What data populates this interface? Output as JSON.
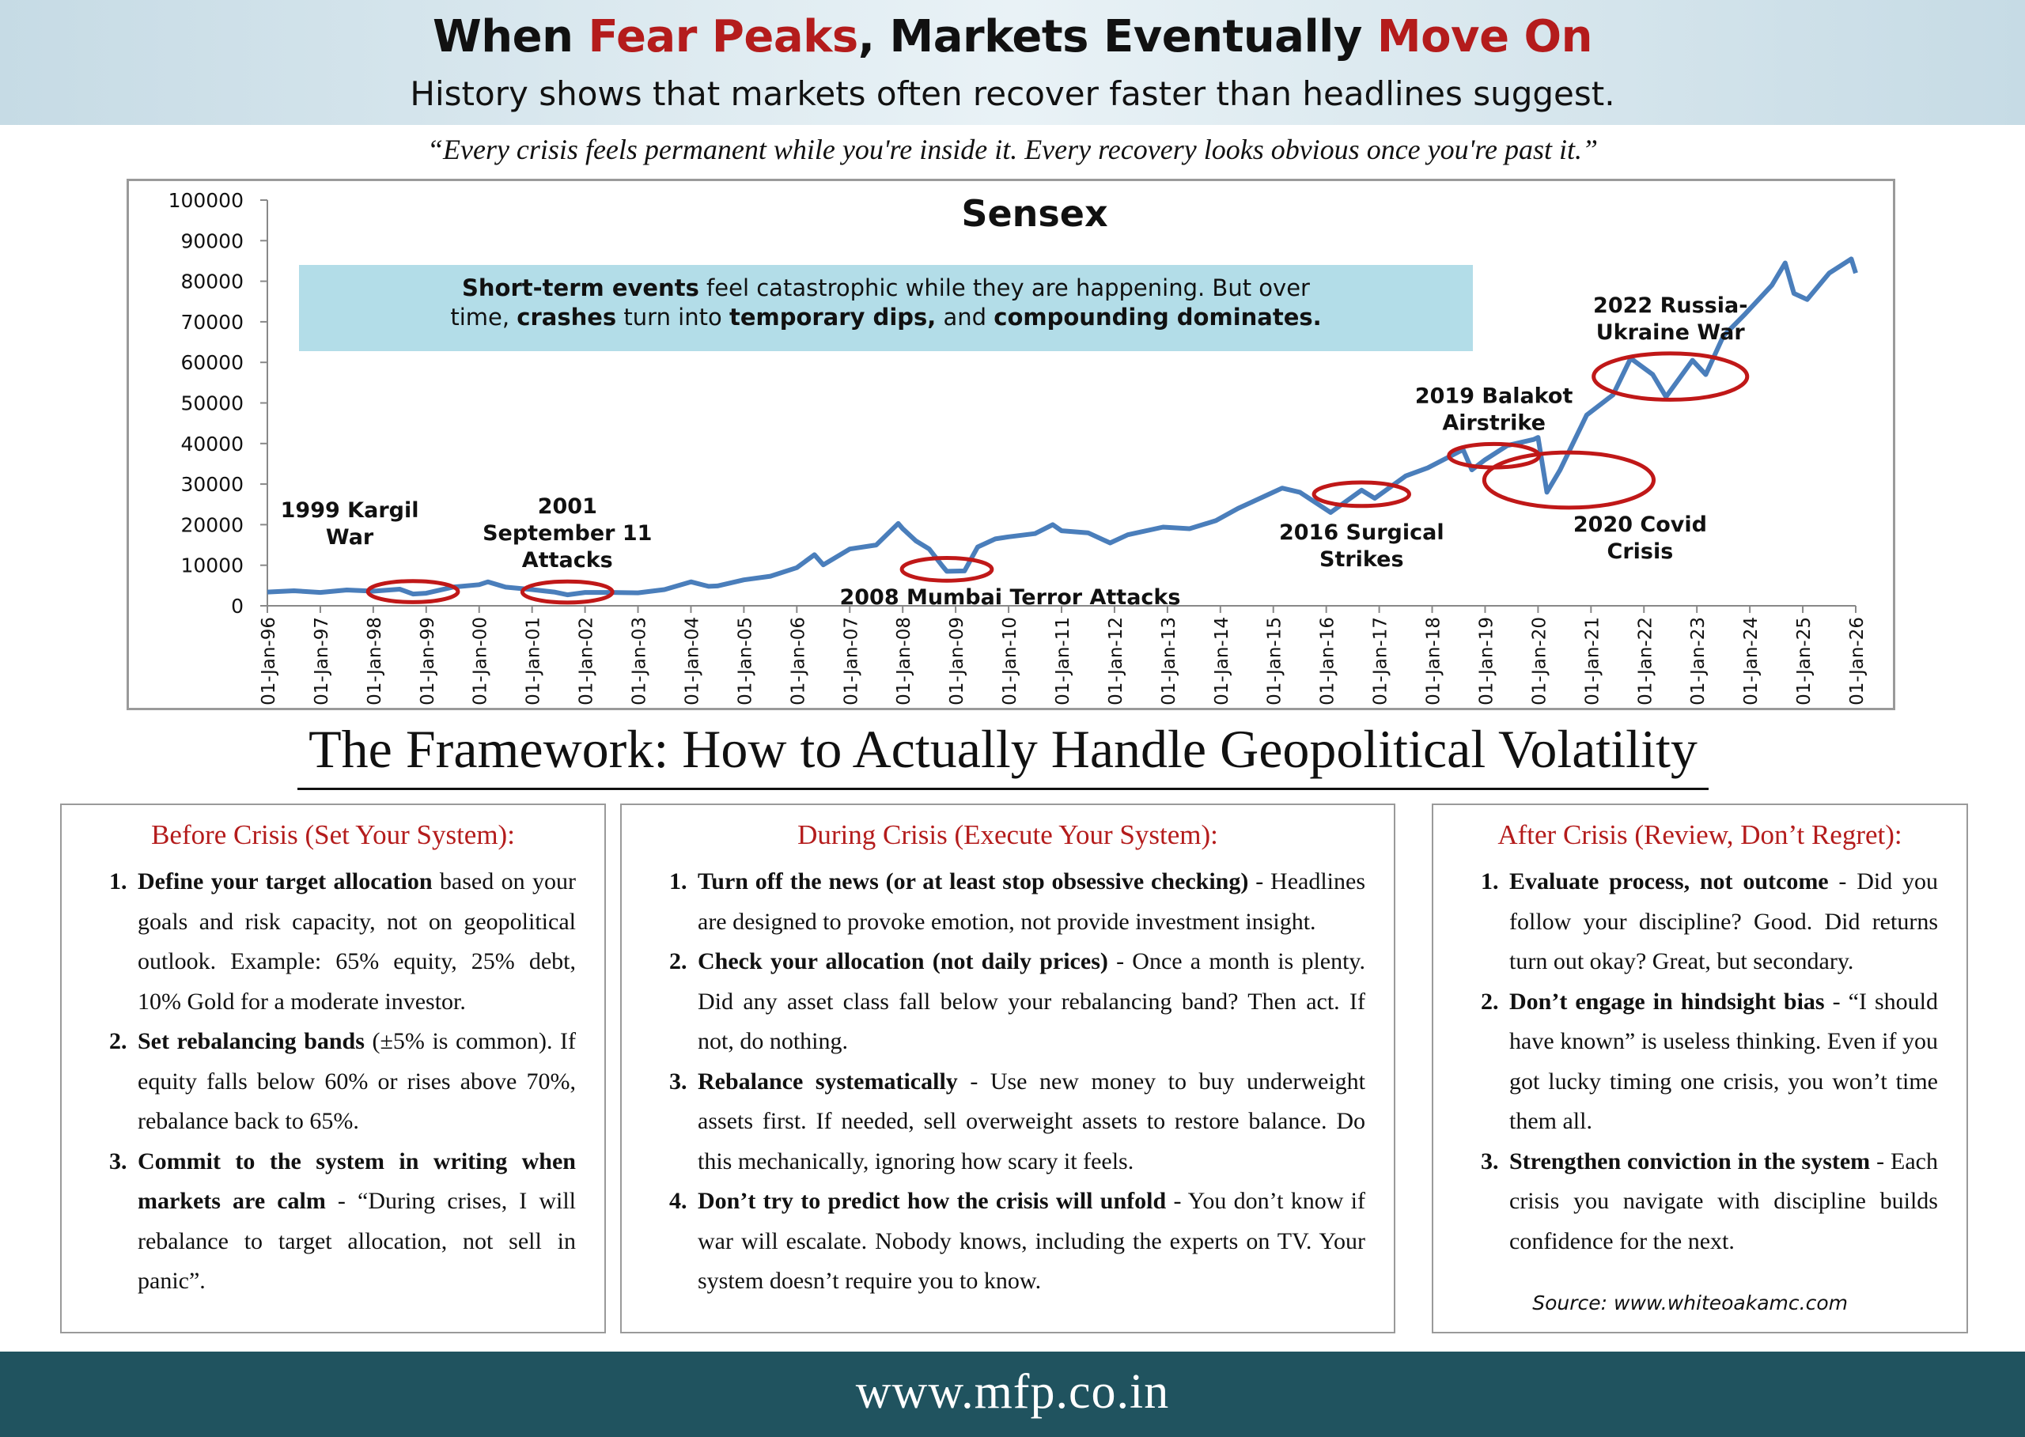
{
  "header": {
    "title_parts": [
      "When ",
      "Fear Peaks",
      ", Markets Eventually ",
      "Move On"
    ],
    "subtitle": "History shows that markets often recover faster than headlines suggest."
  },
  "quote": "“Every crisis feels permanent while you're inside it. Every recovery looks obvious once you're past it.”",
  "colors": {
    "accent_red": "#b41c1c",
    "series_blue": "#4a7ebb",
    "callout_bg": "#b3dde8",
    "footer_bg": "#20535f",
    "circle_red": "#c01818"
  },
  "chart_data": {
    "type": "line",
    "title": "Sensex",
    "series": [
      {
        "x": [
          "1996-01",
          "1996-07",
          "1997-01",
          "1997-07",
          "1998-01",
          "1998-07",
          "1998-10",
          "1999-01",
          "1999-07",
          "2000-01",
          "2000-03",
          "2000-07",
          "2001-01",
          "2001-06",
          "2001-09",
          "2002-01",
          "2002-07",
          "2003-01",
          "2003-07",
          "2004-01",
          "2004-05",
          "2004-07",
          "2005-01",
          "2005-07",
          "2006-01",
          "2006-05",
          "2006-07",
          "2007-01",
          "2007-07",
          "2007-12",
          "2008-01",
          "2008-04",
          "2008-07",
          "2008-10",
          "2008-11",
          "2009-03",
          "2009-06",
          "2009-10",
          "2010-01",
          "2010-07",
          "2010-11",
          "2011-01",
          "2011-07",
          "2011-12",
          "2012-04",
          "2012-12",
          "2013-06",
          "2013-12",
          "2014-05",
          "2014-12",
          "2015-03",
          "2015-07",
          "2016-02",
          "2016-09",
          "2016-12",
          "2017-07",
          "2017-12",
          "2018-08",
          "2018-10",
          "2019-01",
          "2019-06",
          "2019-12",
          "2020-01",
          "2020-03",
          "2020-06",
          "2020-12",
          "2021-06",
          "2021-10",
          "2022-03",
          "2022-06",
          "2022-12",
          "2023-03",
          "2023-07",
          "2023-12",
          "2024-06",
          "2024-09",
          "2024-11",
          "2025-02",
          "2025-07",
          "2025-12",
          "2026-01"
        ],
        "values": [
          3400,
          3700,
          3300,
          3900,
          3600,
          4100,
          2900,
          3100,
          4600,
          5200,
          5900,
          4600,
          4000,
          3400,
          2700,
          3300,
          3300,
          3200,
          4000,
          5900,
          4800,
          4900,
          6400,
          7300,
          9400,
          12600,
          10100,
          14000,
          15000,
          20300,
          19000,
          16000,
          14000,
          9800,
          8500,
          8600,
          14500,
          16500,
          17000,
          17800,
          20000,
          18500,
          18000,
          15500,
          17500,
          19400,
          19000,
          21000,
          24000,
          27500,
          29000,
          28000,
          23000,
          28500,
          26500,
          32000,
          34000,
          38500,
          33500,
          36000,
          39500,
          41000,
          41500,
          28000,
          33500,
          47000,
          52000,
          61000,
          57000,
          51500,
          60500,
          57000,
          66500,
          72000,
          79000,
          84500,
          77000,
          75500,
          82000,
          85500,
          82000
        ]
      }
    ],
    "ylim": [
      0,
      100000
    ],
    "yticks": [
      "0",
      "10000",
      "20000",
      "30000",
      "40000",
      "50000",
      "60000",
      "70000",
      "80000",
      "90000",
      "100000"
    ],
    "xticks": [
      "01-Jan-96",
      "01-Jan-97",
      "01-Jan-98",
      "01-Jan-99",
      "01-Jan-00",
      "01-Jan-01",
      "01-Jan-02",
      "01-Jan-03",
      "01-Jan-04",
      "01-Jan-05",
      "01-Jan-06",
      "01-Jan-07",
      "01-Jan-08",
      "01-Jan-09",
      "01-Jan-10",
      "01-Jan-11",
      "01-Jan-12",
      "01-Jan-13",
      "01-Jan-14",
      "01-Jan-15",
      "01-Jan-16",
      "01-Jan-17",
      "01-Jan-18",
      "01-Jan-19",
      "01-Jan-20",
      "01-Jan-21",
      "01-Jan-22",
      "01-Jan-23",
      "01-Jan-24",
      "01-Jan-25",
      "01-Jan-26"
    ],
    "grid": false,
    "legend": "none",
    "callout": [
      [
        {
          "t": "Short-term events",
          "b": true
        },
        {
          "t": " feel catastrophic while they are happening. But over",
          "b": false
        }
      ],
      [
        {
          "t": "time, ",
          "b": false
        },
        {
          "t": "crashes",
          "b": true
        },
        {
          "t": " turn into ",
          "b": false
        },
        {
          "t": "temporary dips,",
          "b": true
        },
        {
          "t": " and ",
          "b": false
        },
        {
          "t": "compounding dominates.",
          "b": true
        }
      ]
    ],
    "events": [
      {
        "label": [
          "1999 Kargil",
          "War"
        ],
        "x": "1998-10",
        "y": 3500,
        "rx": 0.85,
        "ry": 2600,
        "label_side": "above-left"
      },
      {
        "label": [
          "2001",
          "September 11",
          "Attacks"
        ],
        "x": "2001-09",
        "y": 3400,
        "rx": 0.85,
        "ry": 2600,
        "label_side": "above"
      },
      {
        "label": [
          "2008 Mumbai Terror Attacks"
        ],
        "x": "2008-11",
        "y": 9000,
        "rx": 0.85,
        "ry": 2800,
        "label_side": "below-right"
      },
      {
        "label": [
          "2016 Surgical",
          "Strikes"
        ],
        "x": "2016-09",
        "y": 27500,
        "rx": 0.9,
        "ry": 2900,
        "label_side": "below"
      },
      {
        "label": [
          "2019 Balakot",
          "Airstrike"
        ],
        "x": "2019-03",
        "y": 37000,
        "rx": 0.85,
        "ry": 2900,
        "label_side": "above"
      },
      {
        "label": [
          "2020 Covid",
          "Crisis"
        ],
        "x": "2020-08",
        "y": 31000,
        "rx": 1.6,
        "ry": 6800,
        "label_side": "below-right"
      },
      {
        "label": [
          "2022 Russia-",
          "Ukraine War"
        ],
        "x": "2022-07",
        "y": 56500,
        "rx": 1.45,
        "ry": 5700,
        "label_side": "above"
      }
    ]
  },
  "framework_title": "The Framework: How to Actually Handle Geopolitical Volatility",
  "panels": [
    {
      "heading": "Before Crisis (Set Your System):",
      "items": [
        {
          "num": "1.",
          "lead": "Define your target allocation",
          "body": " based on your goals and risk capacity, not on geopolitical outlook. Example: 65% equity, 25% debt, 10% Gold for a moderate investor."
        },
        {
          "num": "2.",
          "lead": "Set rebalancing bands",
          "body": " (±5% is common). If equity falls below 60% or rises above 70%, rebalance back to 65%."
        },
        {
          "num": "3.",
          "lead": "Commit to the system in writing when markets are calm",
          "body": " - “During crises, I will rebalance to target allocation, not sell in panic”."
        }
      ]
    },
    {
      "heading": "During Crisis (Execute Your System):",
      "items": [
        {
          "num": "1.",
          "lead": "Turn off the news (or at least stop obsessive checking)",
          "body": " - Headlines are designed to provoke emotion, not provide investment insight."
        },
        {
          "num": "2.",
          "lead": "Check your allocation (not daily prices)",
          "body": " - Once a month is plenty. Did any asset class fall below your rebalancing band? Then act. If not, do nothing."
        },
        {
          "num": "3.",
          "lead": "Rebalance systematically",
          "body": " - Use new money to buy underweight assets first. If needed, sell overweight assets to restore balance. Do this mechanically, ignoring how scary it feels."
        },
        {
          "num": "4.",
          "lead": "Don’t try to predict how the crisis will unfold",
          "body": " - You don’t know if war will escalate. Nobody knows, including the experts on TV. Your system doesn’t require you to know."
        }
      ]
    },
    {
      "heading": "After Crisis (Review, Don’t Regret):",
      "items": [
        {
          "num": "1.",
          "lead": "Evaluate process, not outcome",
          "body": " - Did you follow your discipline? Good. Did returns turn out okay? Great, but secondary."
        },
        {
          "num": "2.",
          "lead": "Don’t engage in hindsight bias",
          "body": " - “I should have known” is useless thinking. Even if you got lucky timing one crisis, you won’t time them all."
        },
        {
          "num": "3.",
          "lead": "Strengthen conviction in the system",
          "body": " - Each crisis you navigate with discipline builds confidence for the next."
        }
      ],
      "source": "Source: www.whiteoakamc.com"
    }
  ],
  "footer": {
    "url": "www.mfp.co.in"
  }
}
